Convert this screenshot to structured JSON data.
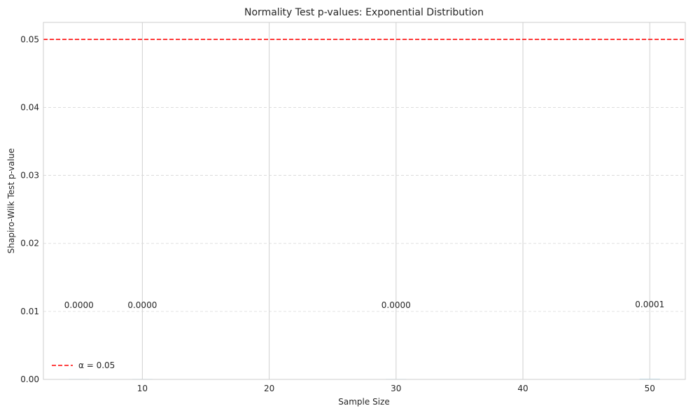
{
  "chart_data": {
    "type": "bar",
    "title": "Normality Test p-values: Exponential Distribution",
    "xlabel": "Sample Size",
    "ylabel": "Shapiro-Wilk Test p-value",
    "xlim": [
      2.2,
      52.8
    ],
    "ylim": [
      0,
      0.0525
    ],
    "x_ticks": [
      10,
      20,
      30,
      40,
      50
    ],
    "y_ticks": [
      0.0,
      0.01,
      0.02,
      0.03,
      0.04,
      0.05
    ],
    "y_tick_labels": [
      "0.00",
      "0.01",
      "0.02",
      "0.03",
      "0.04",
      "0.05"
    ],
    "x": [
      5,
      10,
      30,
      50
    ],
    "values": [
      0.0,
      0.0,
      0.0,
      0.0001
    ],
    "value_labels": [
      "0.0000",
      "0.0000",
      "0.0000",
      "0.0001"
    ],
    "bar_color": "#87ceeb",
    "threshold": {
      "value": 0.05,
      "label": "α = 0.05",
      "color": "#ff0000",
      "style": "dashed"
    },
    "grid": {
      "x": "solid",
      "y": "dashed"
    },
    "legend": {
      "placement": "lower-left"
    }
  }
}
